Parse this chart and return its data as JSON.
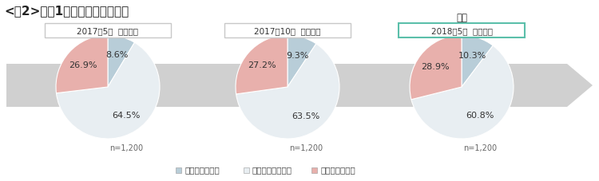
{
  "title": "<図2>今後1年間の景気の見通し",
  "charts": [
    {
      "label": "2017年5月  調査時点",
      "values": [
        8.6,
        64.5,
        26.9
      ],
      "n": "n=1,200",
      "is_current": false
    },
    {
      "label": "2017年10月  調査時点",
      "values": [
        9.3,
        63.5,
        27.2
      ],
      "n": "n=1,200",
      "is_current": false
    },
    {
      "label": "2018年5月  調査時点",
      "values": [
        10.3,
        60.8,
        28.9
      ],
      "n": "n=1,200",
      "is_current": true
    }
  ],
  "colors": [
    "#b8cdd8",
    "#e8eef2",
    "#e8b0ac"
  ],
  "legend_labels": [
    "良くなると思う",
    "変わらないと思う",
    "悪くなると思う"
  ],
  "legend_colors": [
    "#b8cdd8",
    "#e8eef2",
    "#e8b0ac"
  ],
  "arrow_color": "#d0d0d0",
  "box_edge_normal": "#c8c8c8",
  "box_fill_normal": "white",
  "box_edge_current": "#5bbfaa",
  "box_fill_current": "white",
  "today_label": "今回",
  "title_fontsize": 11,
  "label_fontsize": 7.5,
  "pct_fontsize": 8.0,
  "n_fontsize": 7.0,
  "legend_fontsize": 7.5
}
